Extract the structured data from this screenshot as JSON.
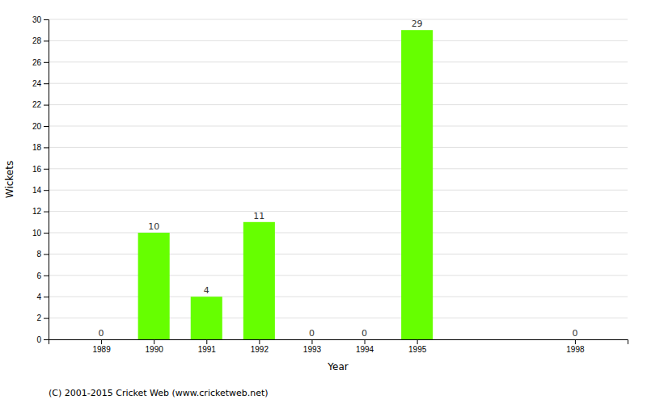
{
  "chart_data": {
    "type": "bar",
    "x": [
      1989,
      1990,
      1991,
      1992,
      1993,
      1994,
      1995,
      1998
    ],
    "values": [
      0,
      10,
      4,
      11,
      0,
      0,
      29,
      0
    ],
    "color": "#66ff00",
    "xlabel": "Year",
    "ylabel": "Wickets",
    "xlim": [
      1988,
      1999
    ],
    "xticks": [
      1989,
      1990,
      1991,
      1992,
      1993,
      1994,
      1995,
      1998
    ],
    "ylim": [
      0,
      30
    ],
    "yticks": [
      0,
      2,
      4,
      6,
      8,
      10,
      12,
      14,
      16,
      18,
      20,
      22,
      24,
      26,
      28,
      30
    ],
    "grid": true,
    "data_labels": true,
    "annotations": [
      "(C) 2001-2015 Cricket Web (www.cricketweb.net)"
    ]
  }
}
